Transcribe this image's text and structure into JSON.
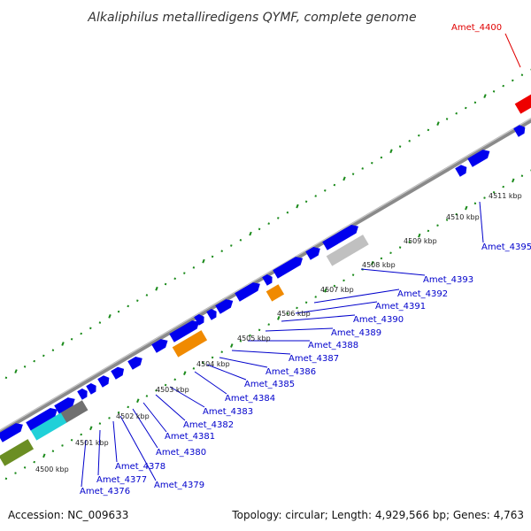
{
  "title": "Alkaliphilus metalliredigens QYMF, complete genome",
  "accession": "Accession: NC_009633",
  "topology": "Topology: circular; Length: 4,929,566 bp; Genes: 4,763",
  "colors": {
    "forward_gene": "#0000ee",
    "reverse_gene": "#0000ee",
    "highlight": "#ee0000",
    "orange_feature": "#f08a00",
    "gray_feature": "#c0c0c0",
    "cyan_feature": "#20d0d8",
    "olive_feature": "#6b8e23",
    "dark_feature": "#707070",
    "tick_color": "#1a8a1a",
    "backbone": "#8a8a8a",
    "label_color": "#0000cc"
  },
  "kbp_ticks": [
    "4500 kbp",
    "4501 kbp",
    "4502 kbp",
    "4503 kbp",
    "4504 kbp",
    "4505 kbp",
    "4506 kbp",
    "4507 kbp",
    "4508 kbp",
    "4509 kbp",
    "4510 kbp",
    "4511 kbp"
  ],
  "gene_labels": [
    "Amet_4376",
    "Amet_4377",
    "Amet_4378",
    "Amet_4379",
    "Amet_4380",
    "Amet_4381",
    "Amet_4382",
    "Amet_4383",
    "Amet_4384",
    "Amet_4385",
    "Amet_4386",
    "Amet_4387",
    "Amet_4388",
    "Amet_4389",
    "Amet_4390",
    "Amet_4391",
    "Amet_4392",
    "Amet_4393",
    "Amet_4395"
  ],
  "highlight_label": "Amet_4400"
}
